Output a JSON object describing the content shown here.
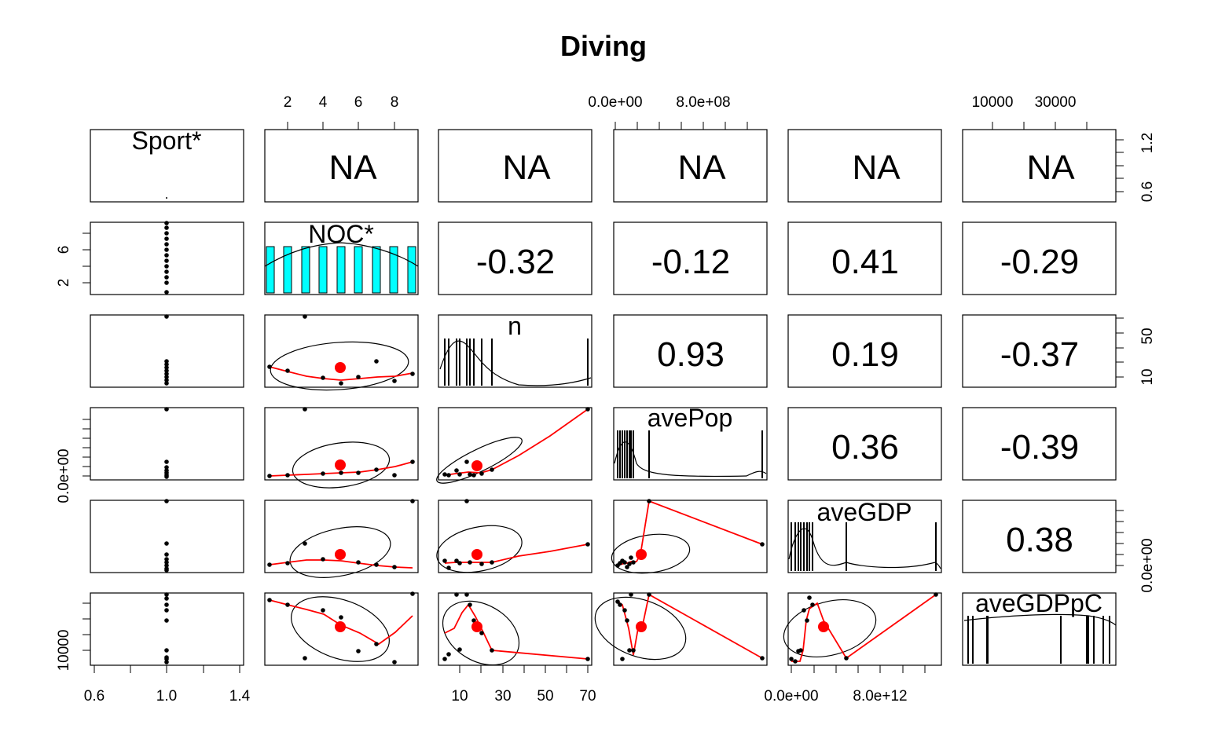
{
  "chart_data": {
    "type": "scatter",
    "title": "Diving",
    "variables": [
      "Sport*",
      "NOC*",
      "n",
      "avePop",
      "aveGDP",
      "aveGDPpC"
    ],
    "na_label": "NA",
    "correlations": [
      {
        "row": 1,
        "col": 2,
        "value": "-0.32"
      },
      {
        "row": 1,
        "col": 3,
        "value": "-0.12"
      },
      {
        "row": 1,
        "col": 4,
        "value": "0.41"
      },
      {
        "row": 1,
        "col": 5,
        "value": "-0.29"
      },
      {
        "row": 2,
        "col": 3,
        "value": "0.93"
      },
      {
        "row": 2,
        "col": 4,
        "value": "0.19"
      },
      {
        "row": 2,
        "col": 5,
        "value": "-0.37"
      },
      {
        "row": 3,
        "col": 4,
        "value": "0.36"
      },
      {
        "row": 3,
        "col": 5,
        "value": "-0.39"
      },
      {
        "row": 4,
        "col": 5,
        "value": "0.38"
      }
    ],
    "ticks": {
      "top_noc": [
        "2",
        "4",
        "6",
        "8"
      ],
      "top_avepop": [
        "0.0e+00",
        "8.0e+08"
      ],
      "top_avegdppc": [
        "10000",
        "30000"
      ],
      "bottom_sport": [
        "0.6",
        "1.0",
        "1.4"
      ],
      "bottom_n": [
        "10",
        "30",
        "50",
        "70"
      ],
      "bottom_avegdp": [
        "0.0e+00",
        "8.0e+12"
      ],
      "left_noc": [
        "2",
        "6"
      ],
      "left_avepop": [
        "0.0e+00"
      ],
      "left_avegdppc": [
        "10000"
      ],
      "right_sport": [
        "0.6",
        "1.2"
      ],
      "right_n": [
        "10",
        "50"
      ],
      "right_avegdp": [
        "0.0e+00"
      ]
    },
    "colors": {
      "histogram": "#00ffff",
      "smooth": "#ff0000",
      "mean_point": "#ff0000",
      "points": "#000000"
    },
    "legend": "none",
    "grid": false
  }
}
